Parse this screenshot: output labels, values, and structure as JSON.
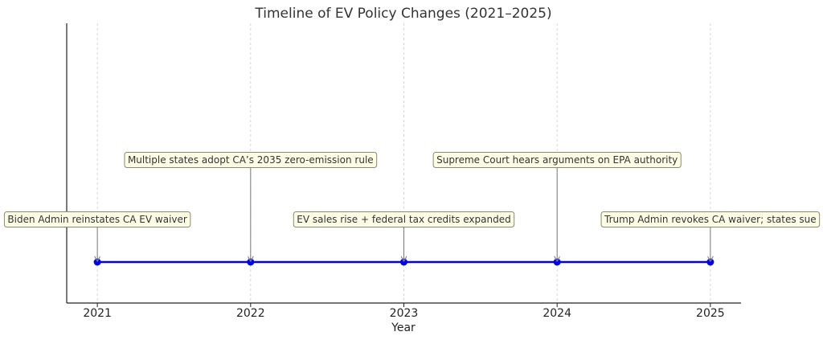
{
  "chart_data": {
    "type": "line",
    "title": "Timeline of EV Policy Changes (2021–2025)",
    "xlabel": "Year",
    "ylabel": "",
    "x": [
      2021,
      2022,
      2023,
      2024,
      2025
    ],
    "xlim": [
      2020.8,
      2025.2
    ],
    "grid": "vertical dashed at each year",
    "series": [
      {
        "values": [
          1,
          1,
          1,
          1,
          1
        ]
      }
    ],
    "annotations": [
      {
        "x": 2021,
        "text": "Biden Admin reinstates CA EV waiver",
        "level": "low"
      },
      {
        "x": 2022,
        "text": "Multiple states adopt CA’s 2035 zero-emission rule",
        "level": "high"
      },
      {
        "x": 2023,
        "text": "EV sales rise + federal tax credits expanded",
        "level": "low"
      },
      {
        "x": 2024,
        "text": "Supreme Court hears arguments on EPA authority",
        "level": "high"
      },
      {
        "x": 2025,
        "text": "Trump Admin revokes CA waiver; states sue",
        "level": "low"
      }
    ],
    "colors": {
      "line": "#0000ee",
      "marker": "#0000ee",
      "annotation_fill": "#fdfde6",
      "annotation_border": "#8a8a6a",
      "arrow": "#777777",
      "grid": "#cccccc"
    }
  }
}
